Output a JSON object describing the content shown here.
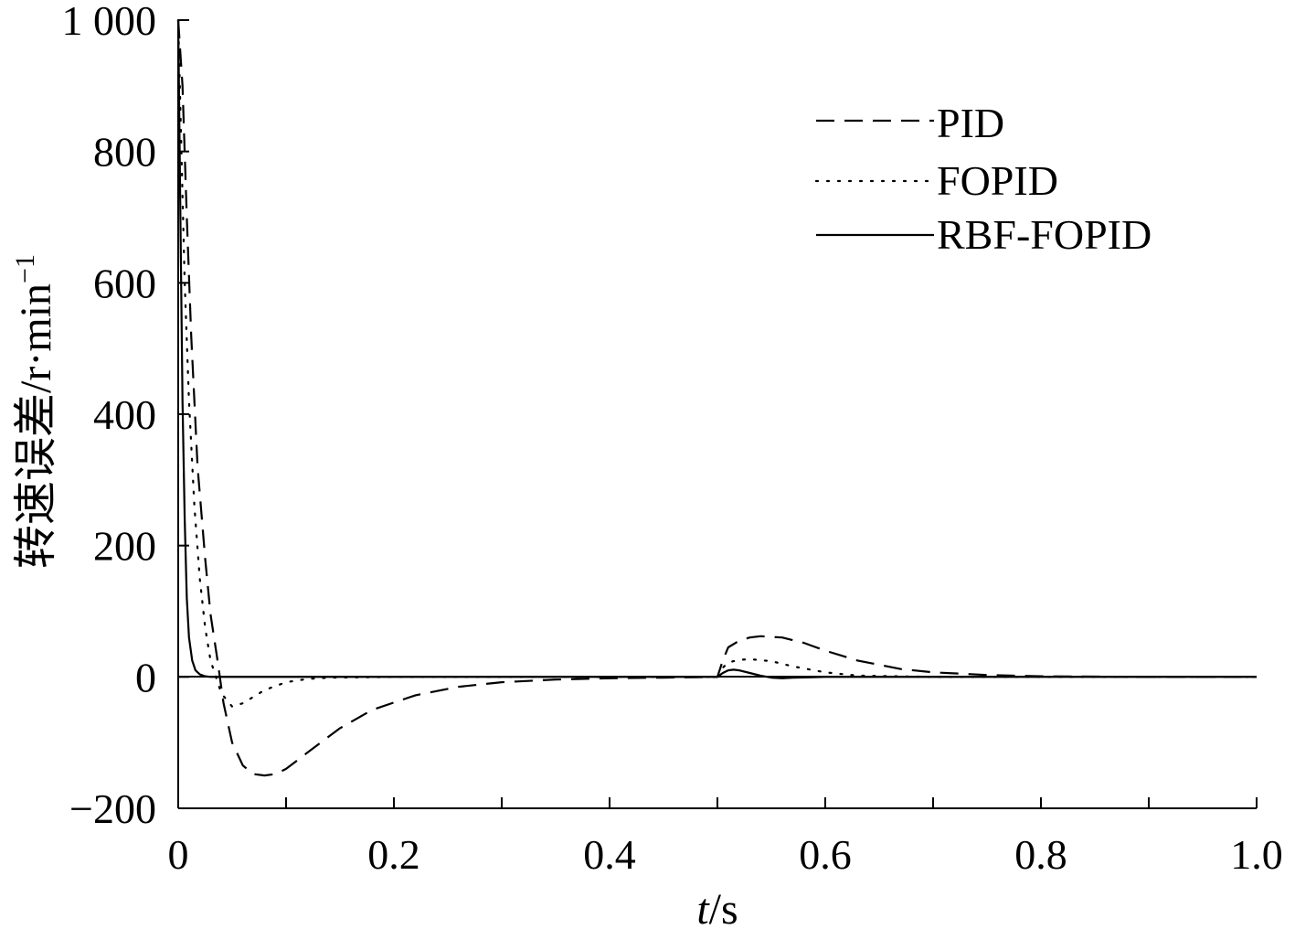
{
  "chart_data": {
    "type": "line",
    "title": "",
    "xlabel_italic": "t",
    "xlabel_rest": "/s",
    "ylabel_main": "转速误差/r·min",
    "ylabel_sup": "−1",
    "xlim": [
      0,
      1.0
    ],
    "ylim": [
      -200,
      1000
    ],
    "x_ticks": [
      "0",
      "0.2",
      "0.4",
      "0.6",
      "0.8",
      "1.0"
    ],
    "x_tick_values": [
      0,
      0.2,
      0.4,
      0.6,
      0.8,
      1.0
    ],
    "x_minor_tick_values": [
      0.1,
      0.3,
      0.5,
      0.7,
      0.9
    ],
    "y_ticks": [
      "−200",
      "0",
      "200",
      "400",
      "600",
      "800",
      "1 000"
    ],
    "y_tick_values": [
      -200,
      0,
      200,
      400,
      600,
      800,
      1000
    ],
    "grid": false,
    "legend_position": "top-right",
    "series": [
      {
        "name": "PID",
        "style": "dashed",
        "x": [
          0,
          0.004,
          0.008,
          0.012,
          0.018,
          0.025,
          0.03,
          0.036,
          0.042,
          0.05,
          0.06,
          0.07,
          0.08,
          0.09,
          0.1,
          0.12,
          0.15,
          0.18,
          0.22,
          0.26,
          0.3,
          0.35,
          0.4,
          0.45,
          0.5,
          0.505,
          0.51,
          0.52,
          0.53,
          0.54,
          0.56,
          0.58,
          0.6,
          0.63,
          0.67,
          0.7,
          0.75,
          0.8,
          0.9,
          1.0
        ],
        "values": [
          1000,
          900,
          700,
          520,
          320,
          180,
          95,
          30,
          -40,
          -100,
          -135,
          -148,
          -150,
          -148,
          -140,
          -115,
          -78,
          -50,
          -28,
          -15,
          -8,
          -4,
          -2,
          -1,
          0,
          25,
          45,
          55,
          60,
          62,
          60,
          52,
          40,
          25,
          12,
          7,
          3,
          1,
          0,
          0
        ]
      },
      {
        "name": "FOPID",
        "style": "dotted",
        "x": [
          0,
          0.003,
          0.006,
          0.01,
          0.015,
          0.02,
          0.025,
          0.03,
          0.04,
          0.05,
          0.06,
          0.07,
          0.08,
          0.1,
          0.12,
          0.14,
          0.2,
          0.3,
          0.4,
          0.5,
          0.505,
          0.51,
          0.52,
          0.53,
          0.55,
          0.57,
          0.6,
          0.63,
          0.7,
          0.8,
          1.0
        ],
        "values": [
          1000,
          800,
          600,
          420,
          260,
          150,
          75,
          25,
          -25,
          -45,
          -40,
          -30,
          -20,
          -8,
          -3,
          -1,
          0,
          0,
          0,
          0,
          14,
          22,
          26,
          27,
          24,
          16,
          7,
          2,
          0,
          0,
          0
        ]
      },
      {
        "name": "RBF-FOPID",
        "style": "solid",
        "x": [
          0,
          0.002,
          0.004,
          0.006,
          0.008,
          0.01,
          0.013,
          0.016,
          0.02,
          0.025,
          0.03,
          0.1,
          0.3,
          0.5,
          0.505,
          0.51,
          0.515,
          0.52,
          0.53,
          0.54,
          0.55,
          0.56,
          0.57,
          0.6,
          0.7,
          1.0
        ],
        "values": [
          1000,
          700,
          420,
          240,
          120,
          60,
          25,
          10,
          4,
          1,
          0,
          0,
          0,
          0,
          6,
          10,
          11,
          10,
          6,
          2,
          -1,
          -2,
          -1,
          0,
          0,
          0
        ]
      }
    ]
  }
}
